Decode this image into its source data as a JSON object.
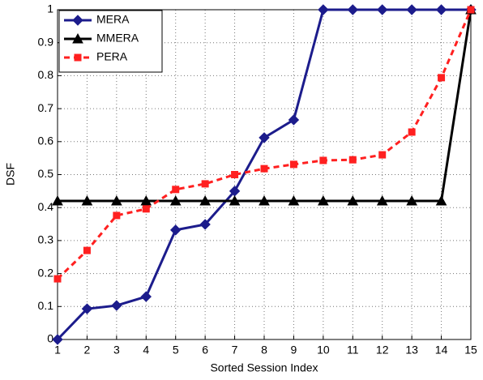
{
  "chart_data": {
    "type": "line",
    "xlabel": "Sorted Session Index",
    "ylabel": "DSF",
    "x": [
      1,
      2,
      3,
      4,
      5,
      6,
      7,
      8,
      9,
      10,
      11,
      12,
      13,
      14,
      15
    ],
    "series": [
      {
        "name": "MERA",
        "color": "#1c1c8c",
        "marker": "diamond",
        "dashed": false,
        "values": [
          0,
          0.093,
          0.103,
          0.13,
          0.332,
          0.349,
          0.45,
          0.612,
          0.666,
          1,
          1,
          1,
          1,
          1,
          1
        ]
      },
      {
        "name": "MMERA",
        "color": "#000000",
        "marker": "triangle",
        "dashed": false,
        "values": [
          0.42,
          0.42,
          0.42,
          0.42,
          0.42,
          0.42,
          0.42,
          0.42,
          0.42,
          0.42,
          0.42,
          0.42,
          0.42,
          0.42,
          1
        ]
      },
      {
        "name": "PERA",
        "color": "#ff2020",
        "marker": "square",
        "dashed": true,
        "values": [
          0.184,
          0.27,
          0.376,
          0.396,
          0.455,
          0.472,
          0.5,
          0.518,
          0.531,
          0.543,
          0.545,
          0.56,
          0.629,
          0.794,
          1
        ]
      }
    ],
    "xlim": [
      1,
      15
    ],
    "xticks": [
      1,
      2,
      3,
      4,
      5,
      6,
      7,
      8,
      9,
      10,
      11,
      12,
      13,
      14,
      15
    ],
    "ylim": [
      0,
      1
    ],
    "yticks": [
      0,
      0.1,
      0.2,
      0.3,
      0.4,
      0.5,
      0.6,
      0.7,
      0.8,
      0.9,
      1
    ],
    "grid": true,
    "legend": "upper-left"
  }
}
